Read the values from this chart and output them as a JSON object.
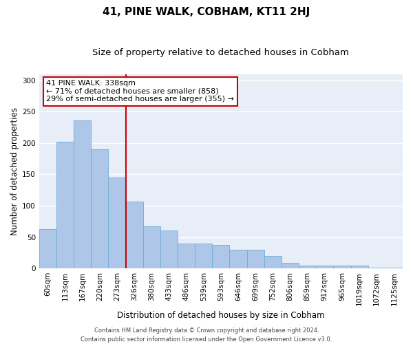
{
  "title": "41, PINE WALK, COBHAM, KT11 2HJ",
  "subtitle": "Size of property relative to detached houses in Cobham",
  "xlabel": "Distribution of detached houses by size in Cobham",
  "ylabel": "Number of detached properties",
  "categories": [
    "60sqm",
    "113sqm",
    "167sqm",
    "220sqm",
    "273sqm",
    "326sqm",
    "380sqm",
    "433sqm",
    "486sqm",
    "539sqm",
    "593sqm",
    "646sqm",
    "699sqm",
    "752sqm",
    "806sqm",
    "859sqm",
    "912sqm",
    "965sqm",
    "1019sqm",
    "1072sqm",
    "1125sqm"
  ],
  "values": [
    63,
    202,
    236,
    190,
    145,
    107,
    67,
    60,
    40,
    40,
    37,
    30,
    30,
    20,
    9,
    5,
    4,
    4,
    4,
    1,
    1
  ],
  "bar_color": "#aec6e8",
  "bar_edge_color": "#6baed6",
  "vline_index": 5,
  "vline_color": "#cc0000",
  "annotation_box_text": "41 PINE WALK: 338sqm\n← 71% of detached houses are smaller (858)\n29% of semi-detached houses are larger (355) →",
  "annotation_box_color": "#cc0000",
  "annotation_box_fill": "white",
  "ylim": [
    0,
    310
  ],
  "yticks": [
    0,
    50,
    100,
    150,
    200,
    250,
    300
  ],
  "footer_line1": "Contains HM Land Registry data © Crown copyright and database right 2024.",
  "footer_line2": "Contains public sector information licensed under the Open Government Licence v3.0.",
  "bg_color": "#e8eef8",
  "grid_color": "white",
  "title_fontsize": 11,
  "subtitle_fontsize": 9.5,
  "axis_label_fontsize": 8.5,
  "tick_fontsize": 7.5,
  "footer_fontsize": 6,
  "annot_fontsize": 8
}
